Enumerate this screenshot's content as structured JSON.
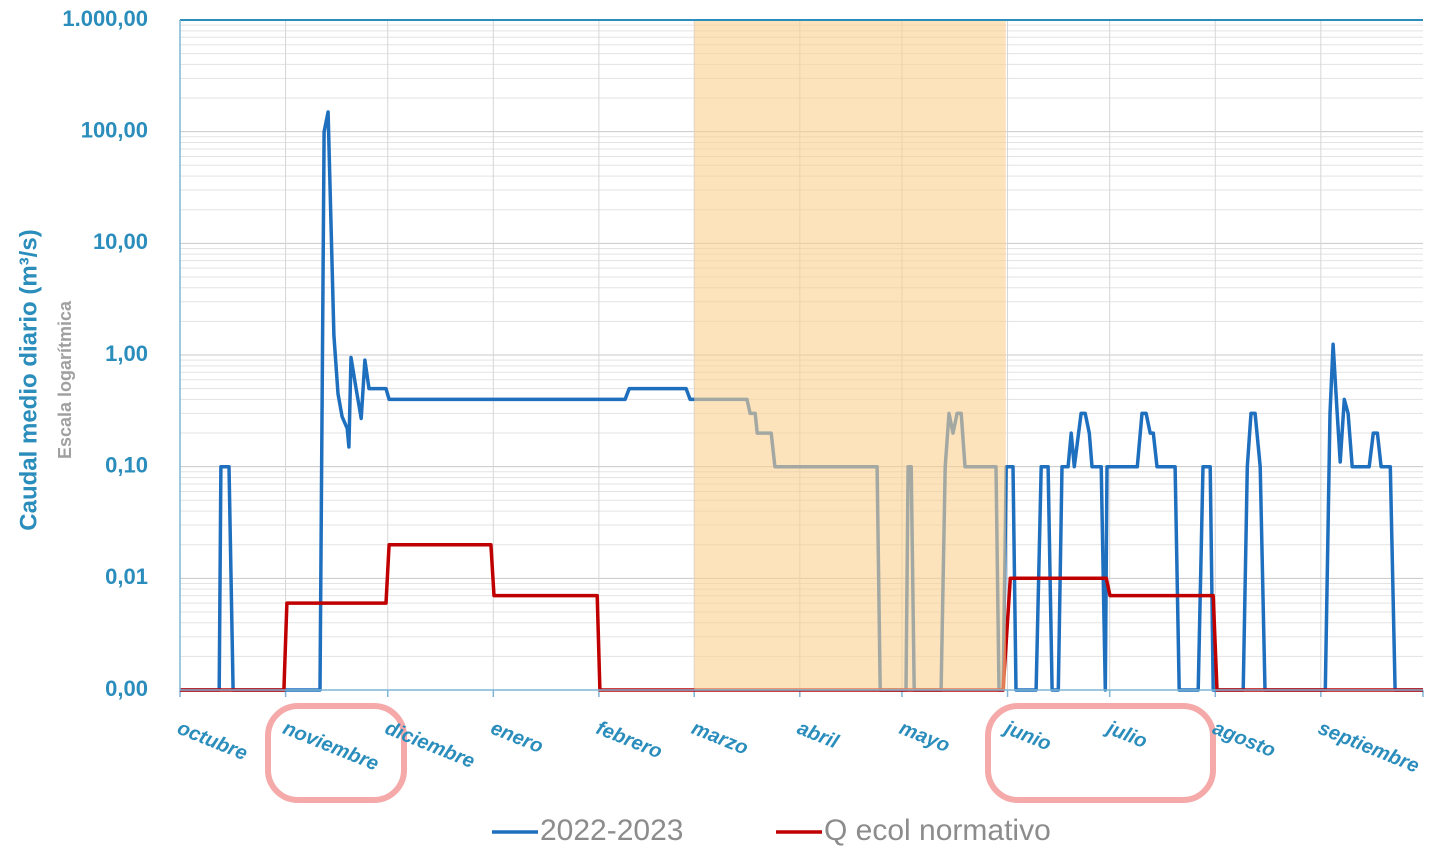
{
  "chart_data": {
    "type": "line",
    "y_label": "Caudal medio diario (m³/s)",
    "y_sublabel": "Escala logarítmica",
    "log_y": true,
    "grid": true,
    "legend": "bottom",
    "ylim": [
      0.001,
      1000
    ],
    "yticks": [
      {
        "value": 0.001,
        "label": "0,00"
      },
      {
        "value": 0.01,
        "label": "0,01"
      },
      {
        "value": 0.1,
        "label": "0,10"
      },
      {
        "value": 1,
        "label": "1,00"
      },
      {
        "value": 10,
        "label": "10,00"
      },
      {
        "value": 100,
        "label": "100,00"
      },
      {
        "value": 1000,
        "label": "1.000,00"
      }
    ],
    "xlim": [
      0,
      365
    ],
    "xticks": [
      {
        "value": 0,
        "label": "octubre"
      },
      {
        "value": 31,
        "label": "noviembre"
      },
      {
        "value": 61,
        "label": "diciembre"
      },
      {
        "value": 92,
        "label": "enero"
      },
      {
        "value": 123,
        "label": "febrero"
      },
      {
        "value": 151,
        "label": "marzo"
      },
      {
        "value": 182,
        "label": "abril"
      },
      {
        "value": 212,
        "label": "mayo"
      },
      {
        "value": 243,
        "label": "junio"
      },
      {
        "value": 273,
        "label": "julio"
      },
      {
        "value": 304,
        "label": "agosto"
      },
      {
        "value": 335,
        "label": "septiembre"
      }
    ],
    "shaded_x": [
      151,
      242.5
    ],
    "shade_color": "#fbd08f",
    "series": [
      {
        "name": "2022-2023",
        "color": "#1f6fbf",
        "x": [
          0,
          11.5,
          12.0,
          14.4,
          15.6,
          41.1,
          42.3,
          43.5,
          45.2,
          46.4,
          47.6,
          49.1,
          49.6,
          50.2,
          51.7,
          53.2,
          54.3,
          55.5,
          60.5,
          61.4,
          130.7,
          131.9,
          148.6,
          149.8,
          166.5,
          167.4,
          168.9,
          169.5,
          173.6,
          174.7,
          204.7,
          205.6,
          213.2,
          213.8,
          214.7,
          215.6,
          223.5,
          224.7,
          225.8,
          227.0,
          228.2,
          229.4,
          230.5,
          239.6,
          240.5,
          241.7,
          242.6,
          244.6,
          245.5,
          251.4,
          252.9,
          254.9,
          256.1,
          257.9,
          259.0,
          260.8,
          261.7,
          262.6,
          264.6,
          265.8,
          267.0,
          267.8,
          270.5,
          271.7,
          272.2,
          281.1,
          282.5,
          283.7,
          284.9,
          285.8,
          286.9,
          292.2,
          293.4,
          299.0,
          300.4,
          302.5,
          303.4,
          312.2,
          313.4,
          314.5,
          315.7,
          317.2,
          318.6,
          336.3,
          337.7,
          338.6,
          339.8,
          340.7,
          341.9,
          343.0,
          344.2,
          349.2,
          350.4,
          351.6,
          352.7,
          355.4,
          356.8,
          365
        ],
        "values": [
          0.001,
          0.001,
          0.1,
          0.1,
          0.001,
          0.001,
          100,
          150,
          1.5,
          0.45,
          0.28,
          0.22,
          0.15,
          0.95,
          0.5,
          0.27,
          0.9,
          0.5,
          0.5,
          0.4,
          0.4,
          0.5,
          0.5,
          0.4,
          0.4,
          0.3,
          0.3,
          0.2,
          0.2,
          0.1,
          0.1,
          0.001,
          0.001,
          0.1,
          0.1,
          0.001,
          0.001,
          0.1,
          0.3,
          0.2,
          0.3,
          0.3,
          0.1,
          0.1,
          0.001,
          0.001,
          0.1,
          0.1,
          0.001,
          0.001,
          0.1,
          0.1,
          0.001,
          0.001,
          0.1,
          0.1,
          0.2,
          0.1,
          0.3,
          0.3,
          0.2,
          0.1,
          0.1,
          0.001,
          0.1,
          0.1,
          0.3,
          0.3,
          0.2,
          0.2,
          0.1,
          0.1,
          0.001,
          0.001,
          0.1,
          0.1,
          0.001,
          0.001,
          0.1,
          0.3,
          0.3,
          0.1,
          0.001,
          0.001,
          0.3,
          1.25,
          0.3,
          0.11,
          0.4,
          0.3,
          0.1,
          0.1,
          0.2,
          0.2,
          0.1,
          0.1,
          0.001,
          0.001
        ]
      },
      {
        "name": "Q ecol normativo",
        "color": "#c00000",
        "x": [
          0,
          30.5,
          31.4,
          60.5,
          61.4,
          91.3,
          92.2,
          122.5,
          123.3,
          241.7,
          243.8,
          272.0,
          273.1,
          303.4,
          304.5,
          365
        ],
        "values": [
          0.001,
          0.001,
          0.006,
          0.006,
          0.02,
          0.02,
          0.007,
          0.007,
          0.001,
          0.001,
          0.01,
          0.01,
          0.007,
          0.007,
          0.001,
          0.001
        ]
      }
    ]
  }
}
